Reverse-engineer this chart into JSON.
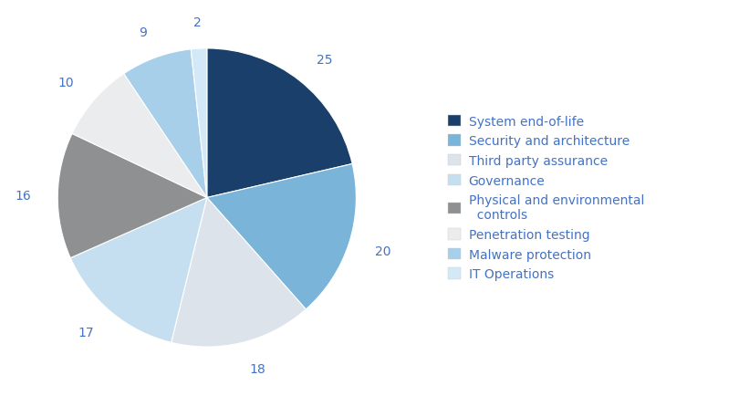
{
  "labels": [
    "System end-of-life",
    "Security and architecture",
    "Third party assurance",
    "Governance",
    "Physical and environmental\ncontrols",
    "Penetration testing",
    "Malware protection",
    "IT Operations"
  ],
  "legend_labels": [
    "System end-of-life",
    "Security and architecture",
    "Third party assurance",
    "Governance",
    "Physical and environmental\n  controls",
    "Penetration testing",
    "Malware protection",
    "IT Operations"
  ],
  "values": [
    25,
    20,
    18,
    17,
    16,
    10,
    9,
    2
  ],
  "colors": [
    "#1b3f6b",
    "#7ab4d8",
    "#dce3ea",
    "#c5dff0",
    "#8f9091",
    "#eaecee",
    "#a8cfea",
    "#d4e9f7"
  ],
  "text_color": "#4472c4",
  "background_color": "#ffffff",
  "label_fontsize": 10,
  "legend_fontsize": 10
}
